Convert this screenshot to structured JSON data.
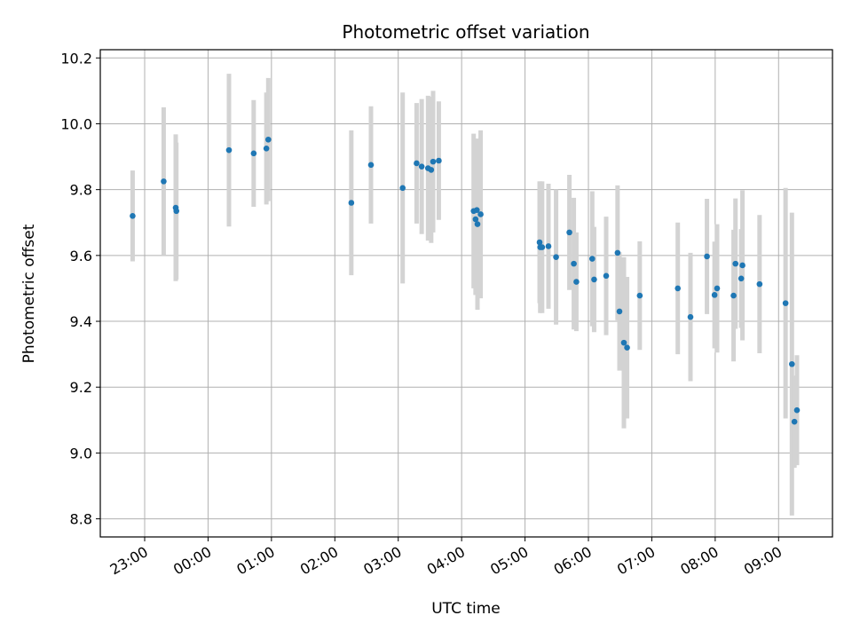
{
  "chart_data": {
    "type": "scatter",
    "title": "Photometric offset variation",
    "xlabel": "UTC time",
    "ylabel": "Photometric offset",
    "grid": true,
    "legend": "none",
    "x_unit": "UTC time (hours relative to 00:00 of the second day; negative values fall on the previous evening)",
    "xlim": [
      -1.7,
      9.85
    ],
    "ylim": [
      8.745,
      10.225
    ],
    "x_ticks": [
      -1,
      0,
      1,
      2,
      3,
      4,
      5,
      6,
      7,
      8,
      9
    ],
    "x_tick_labels": [
      "23:00",
      "00:00",
      "01:00",
      "02:00",
      "03:00",
      "04:00",
      "05:00",
      "06:00",
      "07:00",
      "08:00",
      "09:00"
    ],
    "y_ticks": [
      8.8,
      9.0,
      9.2,
      9.4,
      9.6,
      9.8,
      10.0,
      10.2
    ],
    "y_tick_labels": [
      "8.8",
      "9.0",
      "9.2",
      "9.4",
      "9.6",
      "9.8",
      "10.0",
      "10.2"
    ],
    "colors": {
      "point": "#1f77b4",
      "errorbar": "#d3d3d3",
      "grid": "#b0b0b0"
    },
    "series": [
      {
        "x": [
          -1.19,
          -0.7,
          -0.51,
          -0.5,
          0.33,
          0.72,
          0.92,
          0.95,
          2.26,
          2.57,
          3.07,
          3.29,
          3.37,
          3.47,
          3.52,
          3.55,
          3.64,
          4.19,
          4.22,
          4.24,
          4.25,
          4.3,
          5.23,
          5.24,
          5.27,
          5.37,
          5.49,
          5.7,
          5.77,
          5.81,
          6.06,
          6.09,
          6.28,
          6.46,
          6.49,
          6.56,
          6.61,
          6.81,
          7.41,
          7.61,
          7.87,
          7.99,
          8.03,
          8.29,
          8.32,
          8.41,
          8.43,
          8.7,
          9.11,
          9.21,
          9.25,
          9.29
        ],
        "y": [
          9.72,
          9.825,
          9.745,
          9.735,
          9.92,
          9.91,
          9.925,
          9.952,
          9.76,
          9.875,
          9.805,
          9.88,
          9.87,
          9.865,
          9.86,
          9.885,
          9.888,
          9.735,
          9.71,
          9.738,
          9.695,
          9.725,
          9.64,
          9.625,
          9.625,
          9.628,
          9.595,
          9.67,
          9.575,
          9.52,
          9.59,
          9.527,
          9.538,
          9.608,
          9.43,
          9.335,
          9.32,
          9.478,
          9.5,
          9.413,
          9.597,
          9.48,
          9.5,
          9.478,
          9.575,
          9.53,
          9.57,
          9.513,
          9.455,
          9.27,
          9.095,
          9.13
        ],
        "yerr": [
          0.138,
          0.225,
          0.223,
          0.208,
          0.232,
          0.162,
          0.17,
          0.187,
          0.22,
          0.178,
          0.29,
          0.183,
          0.205,
          0.22,
          0.222,
          0.215,
          0.18,
          0.235,
          0.23,
          0.212,
          0.26,
          0.255,
          0.185,
          0.2,
          0.2,
          0.19,
          0.205,
          0.175,
          0.2,
          0.15,
          0.205,
          0.16,
          0.18,
          0.205,
          0.18,
          0.26,
          0.215,
          0.165,
          0.2,
          0.195,
          0.175,
          0.162,
          0.195,
          0.2,
          0.198,
          0.15,
          0.228,
          0.21,
          0.35,
          0.46,
          0.14,
          0.167
        ]
      }
    ]
  }
}
